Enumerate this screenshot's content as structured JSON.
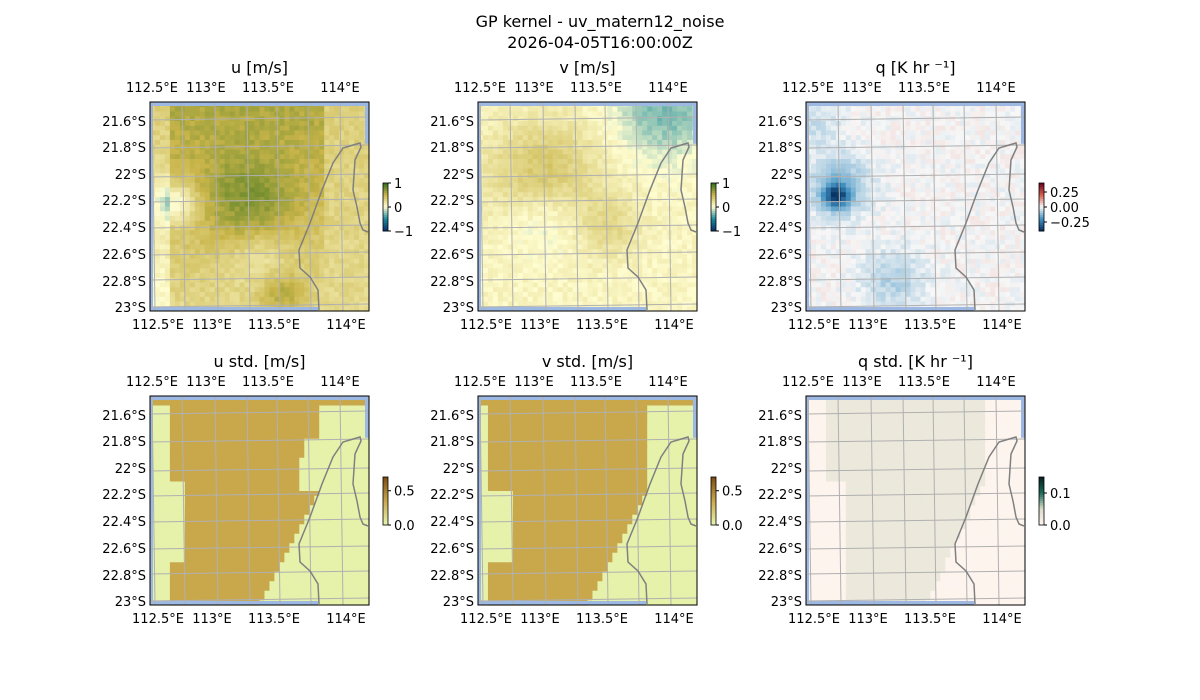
{
  "figure": {
    "title_line1": "GP kernel - uv_matern12_noise",
    "title_line2": "2026-04-05T16:00:00Z"
  },
  "colors": {
    "ocean": "#9db9e3",
    "coastline": "#808080",
    "grid": "#b0b0b0"
  },
  "chart_data": [
    {
      "type": "heatmap",
      "title": "u [m/s]",
      "cmap": [
        "#08306b",
        "#1a8a9a",
        "#fffdd0",
        "#c9b54a",
        "#2e6e1a"
      ],
      "clim": [
        -1,
        1
      ],
      "colorbar_ticks": [
        "1",
        "0",
        "−1"
      ],
      "colorbar_values": [
        1,
        0,
        -1
      ],
      "field": "u",
      "lon_ticks": [
        "112.5°E",
        "113°E",
        "113.5°E",
        "114°E"
      ],
      "lat_ticks": [
        "21.6°S",
        "21.8°S",
        "22°S",
        "22.2°S",
        "22.4°S",
        "22.6°S",
        "22.8°S",
        "23°S"
      ]
    },
    {
      "type": "heatmap",
      "title": "v [m/s]",
      "cmap": [
        "#08306b",
        "#1a8a9a",
        "#fffdd0",
        "#c9b54a",
        "#2e6e1a"
      ],
      "clim": [
        -1,
        1
      ],
      "colorbar_ticks": [
        "1",
        "0",
        "−1"
      ],
      "colorbar_values": [
        1,
        0,
        -1
      ],
      "field": "v",
      "lon_ticks": [
        "112.5°E",
        "113°E",
        "113.5°E",
        "114°E"
      ],
      "lat_ticks": [
        "21.6°S",
        "21.8°S",
        "22°S",
        "22.2°S",
        "22.4°S",
        "22.6°S",
        "22.8°S",
        "23°S"
      ]
    },
    {
      "type": "heatmap",
      "title": "q [K hr ⁻¹]",
      "cmap": [
        "#053061",
        "#4393c3",
        "#f7f7f7",
        "#d6604d",
        "#67001f"
      ],
      "clim": [
        -0.4,
        0.4
      ],
      "colorbar_ticks": [
        "0.25",
        "0.00",
        "−0.25"
      ],
      "colorbar_values": [
        0.25,
        0,
        -0.25
      ],
      "field": "q",
      "lon_ticks": [
        "112.5°E",
        "113°E",
        "113.5°E",
        "114°E"
      ],
      "lat_ticks": [
        "21.6°S",
        "21.8°S",
        "22°S",
        "22.2°S",
        "22.4°S",
        "22.6°S",
        "22.8°S",
        "23°S"
      ]
    },
    {
      "type": "heatmap",
      "title": "u std. [m/s]",
      "cmap": [
        "#e8f6b0",
        "#c9a84c",
        "#7a4a10"
      ],
      "clim": [
        0,
        0.7
      ],
      "colorbar_ticks": [
        "0.5",
        "0.0"
      ],
      "colorbar_values": [
        0.5,
        0
      ],
      "field": "ustd",
      "lon_ticks": [
        "112.5°E",
        "113°E",
        "113.5°E",
        "114°E"
      ],
      "lat_ticks": [
        "21.6°S",
        "21.8°S",
        "22°S",
        "22.2°S",
        "22.4°S",
        "22.6°S",
        "22.8°S",
        "23°S"
      ]
    },
    {
      "type": "heatmap",
      "title": "v std. [m/s]",
      "cmap": [
        "#e8f6b0",
        "#c9a84c",
        "#7a4a10"
      ],
      "clim": [
        0,
        0.7
      ],
      "colorbar_ticks": [
        "0.5",
        "0.0"
      ],
      "colorbar_values": [
        0.5,
        0
      ],
      "field": "vstd",
      "lon_ticks": [
        "112.5°E",
        "113°E",
        "113.5°E",
        "114°E"
      ],
      "lat_ticks": [
        "21.6°S",
        "21.8°S",
        "22°S",
        "22.2°S",
        "22.4°S",
        "22.6°S",
        "22.8°S",
        "23°S"
      ]
    },
    {
      "type": "heatmap",
      "title": "q std. [K hr ⁻¹]",
      "cmap": [
        "#fff5f0",
        "#d8dcc8",
        "#1a6a5a",
        "#052020"
      ],
      "clim": [
        0,
        0.15
      ],
      "colorbar_ticks": [
        "0.1",
        "0.0"
      ],
      "colorbar_values": [
        0.1,
        0
      ],
      "field": "qstd",
      "lon_ticks": [
        "112.5°E",
        "113°E",
        "113.5°E",
        "114°E"
      ],
      "lat_ticks": [
        "21.6°S",
        "21.8°S",
        "22°S",
        "22.2°S",
        "22.4°S",
        "22.6°S",
        "22.8°S",
        "23°S"
      ]
    }
  ]
}
